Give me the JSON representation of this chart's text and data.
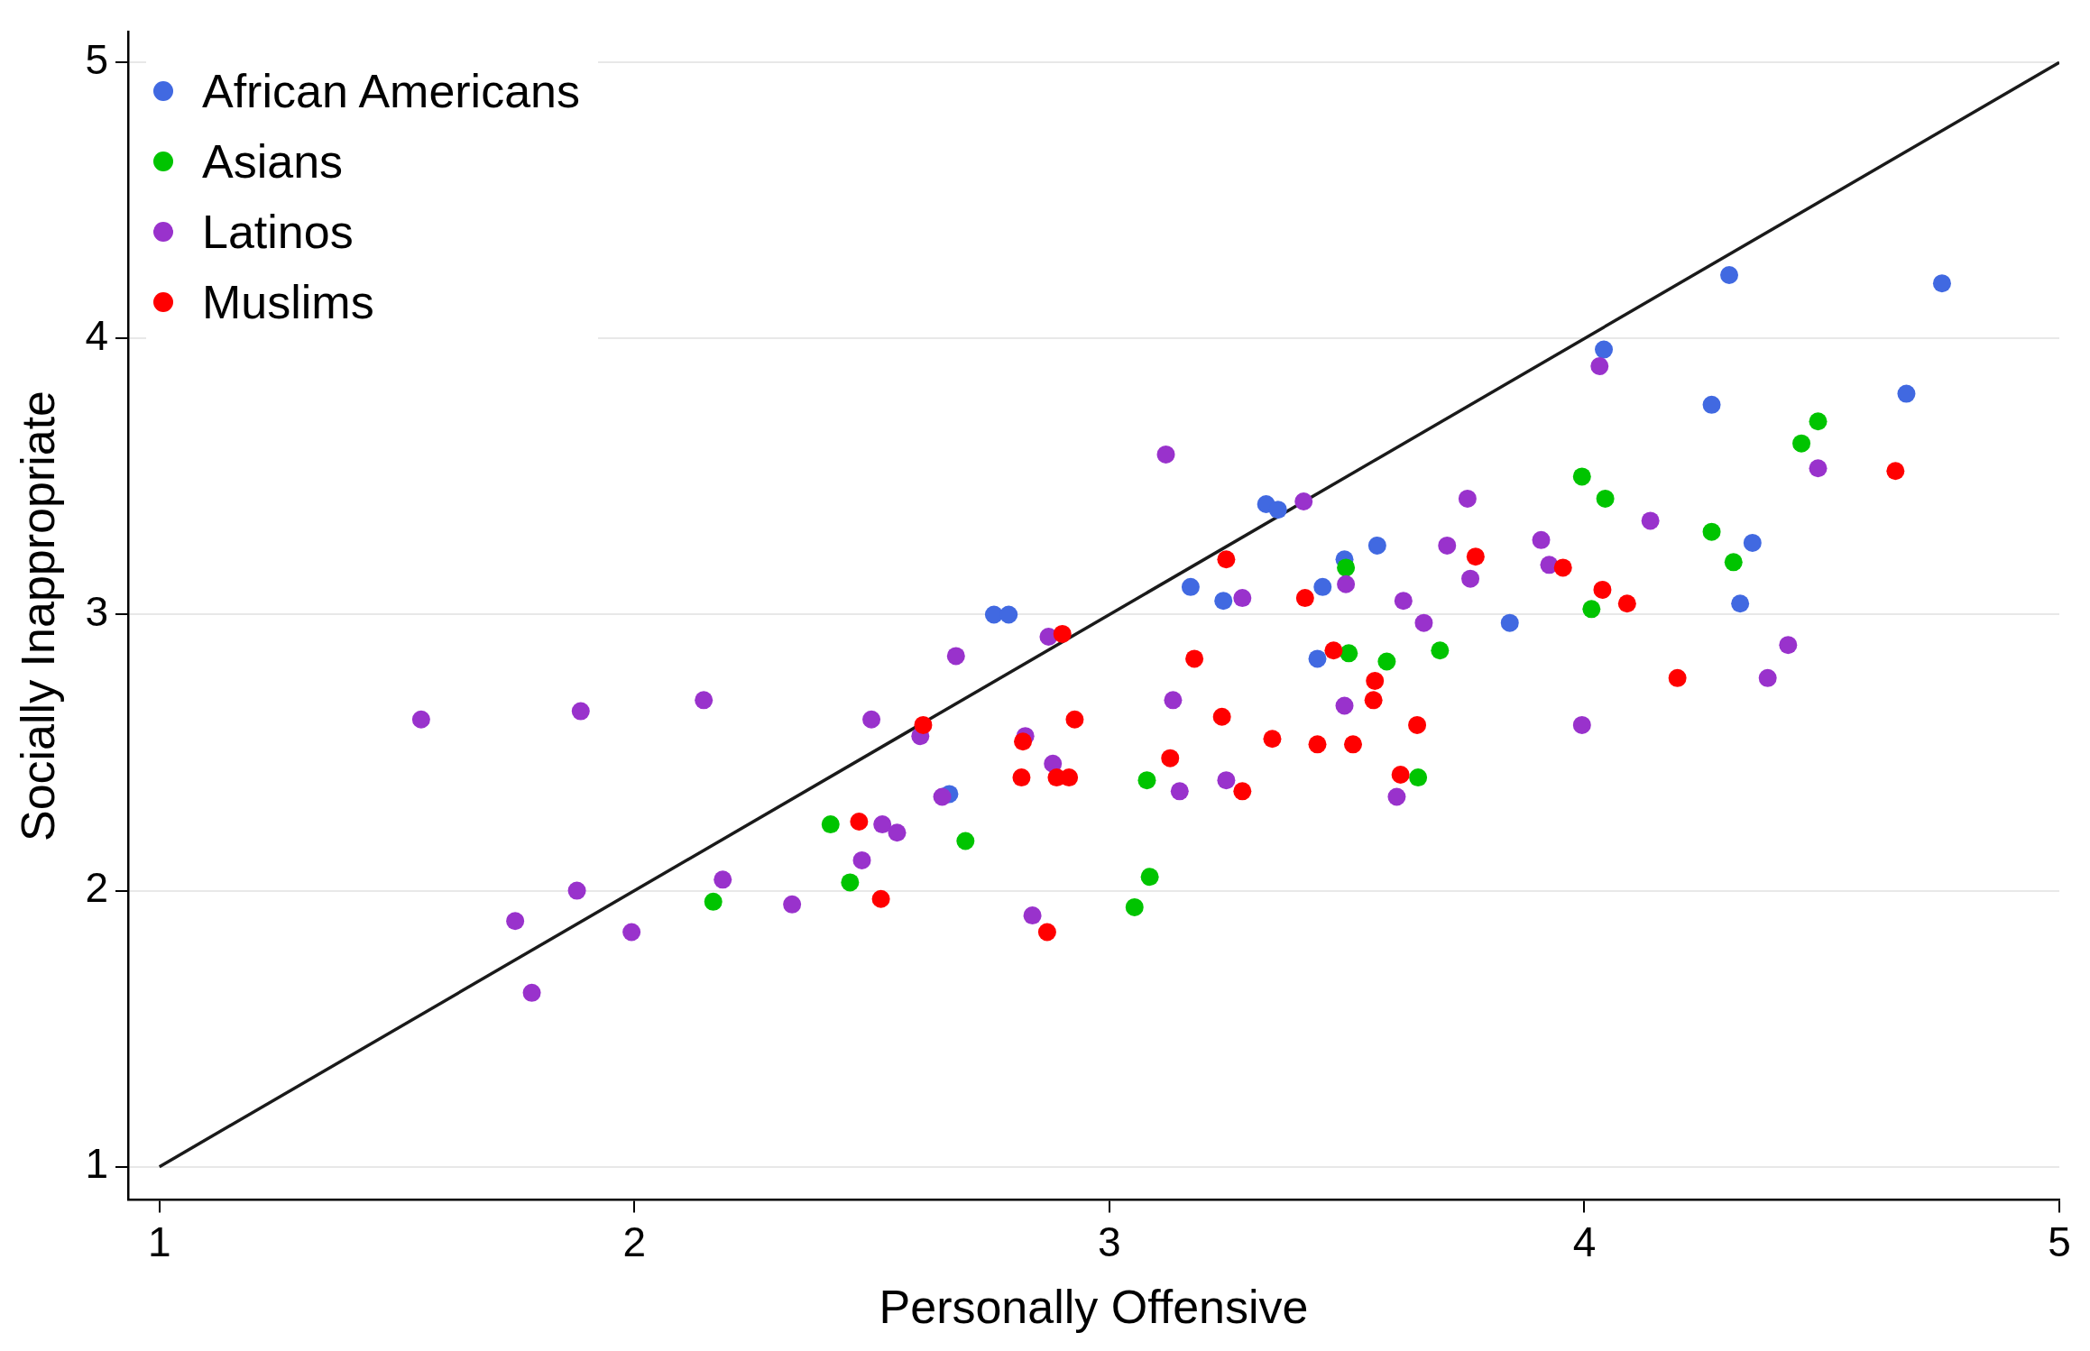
{
  "chart_data": {
    "type": "scatter",
    "xlabel": "Personally Offensive",
    "ylabel": "Socially Inappropriate",
    "xlim": [
      0.934,
      5
    ],
    "ylim": [
      0.88,
      5.11
    ],
    "xticks": [
      1,
      2,
      3,
      4,
      5
    ],
    "yticks": [
      1,
      2,
      3,
      4,
      5
    ],
    "grid": "y",
    "legend": "top left",
    "marker": "circle",
    "series": [
      {
        "name": "African Americans",
        "color": "#4169e1",
        "x": [
          4.305,
          4.753,
          4.041,
          4.268,
          4.678,
          3.33,
          3.355,
          3.495,
          3.564,
          4.354,
          3.171,
          3.449,
          3.24,
          4.328,
          2.757,
          2.788,
          3.843,
          3.438,
          2.663
        ],
        "values": [
          4.23,
          4.2,
          3.96,
          3.76,
          3.8,
          3.4,
          3.38,
          3.2,
          3.25,
          3.26,
          3.1,
          3.1,
          3.05,
          3.04,
          3.0,
          3.0,
          2.97,
          2.84,
          2.35
        ]
      },
      {
        "name": "Asians",
        "color": "#00c400",
        "x": [
          4.492,
          4.457,
          3.995,
          4.044,
          4.268,
          4.314,
          3.498,
          4.015,
          3.696,
          3.504,
          3.584,
          3.079,
          3.65,
          2.413,
          2.697,
          2.454,
          3.085,
          2.166,
          3.053
        ],
        "values": [
          3.7,
          3.62,
          3.5,
          3.42,
          3.3,
          3.19,
          3.17,
          3.02,
          2.87,
          2.86,
          2.83,
          2.4,
          2.41,
          2.24,
          2.18,
          2.03,
          2.05,
          1.96,
          1.94
        ]
      },
      {
        "name": "Latinos",
        "color": "#9932cc",
        "x": [
          1.551,
          1.887,
          2.146,
          3.119,
          3.409,
          4.032,
          3.754,
          4.139,
          4.492,
          3.711,
          3.909,
          3.926,
          3.76,
          3.498,
          3.28,
          3.619,
          3.662,
          4.429,
          2.872,
          2.677,
          4.386,
          3.134,
          3.495,
          2.499,
          3.995,
          2.602,
          2.823,
          2.881,
          3.246,
          3.148,
          2.648,
          3.605,
          2.522,
          2.553,
          2.479,
          2.186,
          1.879,
          2.332,
          1.994,
          1.749,
          2.838,
          1.784
        ],
        "values": [
          2.62,
          2.65,
          2.69,
          3.58,
          3.41,
          3.9,
          3.42,
          3.34,
          3.53,
          3.25,
          3.27,
          3.18,
          3.13,
          3.11,
          3.06,
          3.05,
          2.97,
          2.89,
          2.92,
          2.85,
          2.77,
          2.69,
          2.67,
          2.62,
          2.6,
          2.56,
          2.56,
          2.46,
          2.4,
          2.36,
          2.34,
          2.34,
          2.24,
          2.21,
          2.11,
          2.04,
          2.0,
          1.95,
          1.85,
          1.89,
          1.91,
          1.63
        ]
      },
      {
        "name": "Muslims",
        "color": "#ff0000",
        "x": [
          4.655,
          3.246,
          3.771,
          3.955,
          3.412,
          4.038,
          4.09,
          2.901,
          3.179,
          3.472,
          3.559,
          3.556,
          4.196,
          3.237,
          2.608,
          2.927,
          3.648,
          2.818,
          3.343,
          3.438,
          3.513,
          3.128,
          3.613,
          2.815,
          2.889,
          2.915,
          3.28,
          2.473,
          2.519,
          2.869
        ],
        "values": [
          3.52,
          3.2,
          3.21,
          3.17,
          3.06,
          3.09,
          3.04,
          2.93,
          2.84,
          2.87,
          2.76,
          2.69,
          2.77,
          2.63,
          2.6,
          2.62,
          2.6,
          2.54,
          2.55,
          2.53,
          2.53,
          2.48,
          2.42,
          2.41,
          2.41,
          2.41,
          2.36,
          2.25,
          1.97,
          1.85
        ]
      },
      {
        "type": "line",
        "marker": "none",
        "color": "#1a1a1a",
        "x": [
          1,
          5
        ],
        "values": [
          1,
          5
        ]
      }
    ]
  }
}
